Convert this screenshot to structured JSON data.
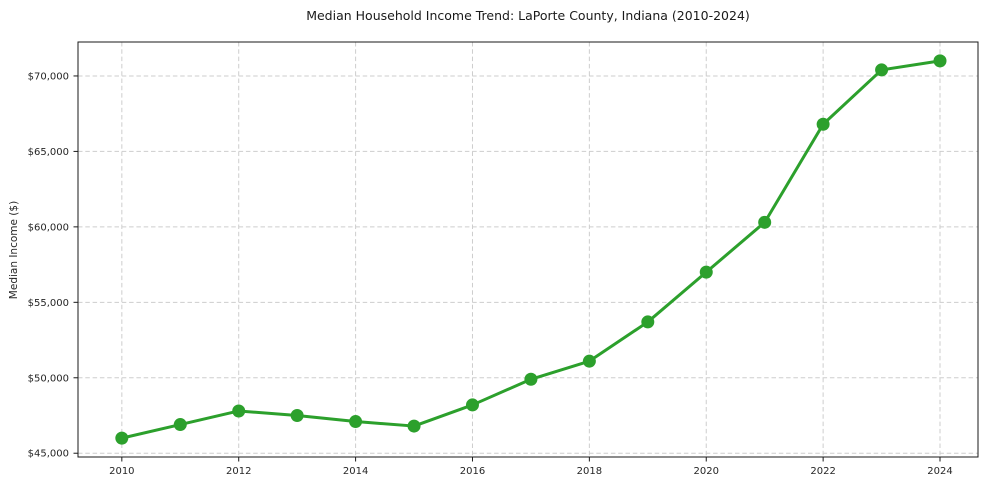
{
  "chart_data": {
    "type": "line",
    "title": "Median Household Income Trend: LaPorte County, Indiana (2010-2024)",
    "xlabel": "",
    "ylabel": "Median Income ($)",
    "x": [
      2010,
      2011,
      2012,
      2013,
      2014,
      2015,
      2016,
      2017,
      2018,
      2019,
      2020,
      2021,
      2022,
      2023,
      2024
    ],
    "series": [
      {
        "name": "Median Household Income",
        "values": [
          46000,
          46900,
          47800,
          47500,
          47100,
          46800,
          48200,
          49900,
          51100,
          53700,
          57000,
          60300,
          66800,
          70400,
          71000
        ]
      }
    ],
    "xlim": [
      2009.25,
      2024.65
    ],
    "ylim": [
      44750,
      72250
    ],
    "xticks": [
      {
        "value": 2010,
        "label": "2010"
      },
      {
        "value": 2012,
        "label": "2012"
      },
      {
        "value": 2014,
        "label": "2014"
      },
      {
        "value": 2016,
        "label": "2016"
      },
      {
        "value": 2018,
        "label": "2018"
      },
      {
        "value": 2020,
        "label": "2020"
      },
      {
        "value": 2022,
        "label": "2022"
      },
      {
        "value": 2024,
        "label": "2024"
      }
    ],
    "yticks": [
      {
        "value": 45000,
        "label": "$45,000"
      },
      {
        "value": 50000,
        "label": "$50,000"
      },
      {
        "value": 55000,
        "label": "$55,000"
      },
      {
        "value": 60000,
        "label": "$60,000"
      },
      {
        "value": 65000,
        "label": "$65,000"
      },
      {
        "value": 70000,
        "label": "$70,000"
      }
    ],
    "grid": true,
    "grid_style": "dashed",
    "legend_position": "none",
    "marker": "circle",
    "line_color": "#2ca02c",
    "marker_color": "#2ca02c",
    "grid_color": "#cdcdcd",
    "spine_color": "#1a1a1a",
    "text_color": "#262626",
    "background_color": "#ffffff"
  }
}
